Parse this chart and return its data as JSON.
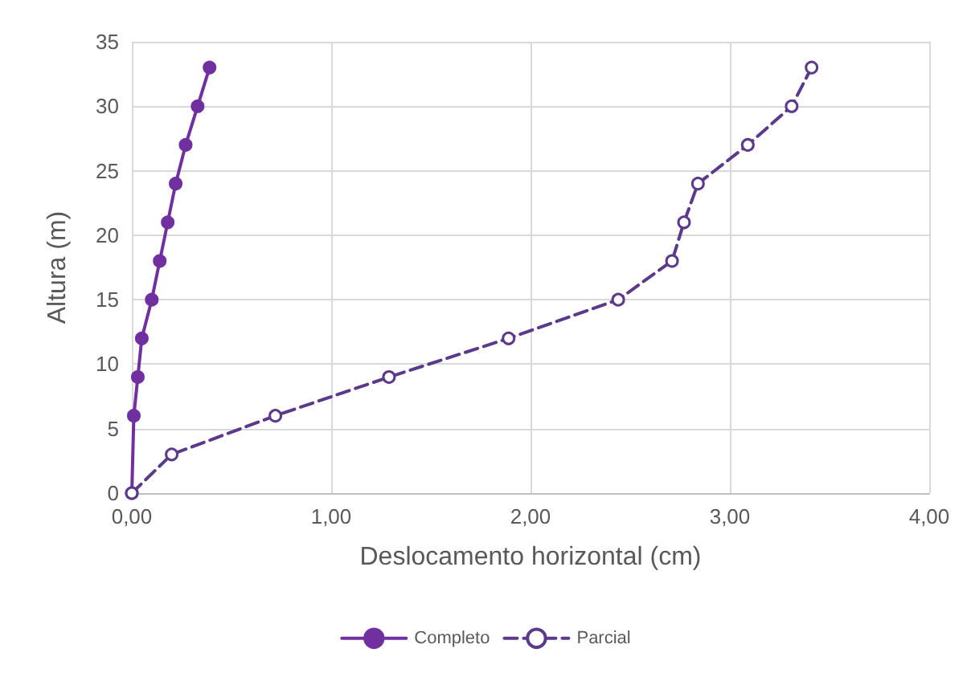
{
  "chart_data": {
    "type": "line",
    "xlabel": "Deslocamento horizontal (cm)",
    "ylabel": "Altura (m)",
    "xlim": [
      0,
      4
    ],
    "xticks": [
      {
        "value": 0,
        "label": "0,00"
      },
      {
        "value": 1,
        "label": "1,00"
      },
      {
        "value": 2,
        "label": "2,00"
      },
      {
        "value": 3,
        "label": "3,00"
      },
      {
        "value": 4,
        "label": "4,00"
      }
    ],
    "ylim": [
      0,
      35
    ],
    "yticks": [
      0,
      5,
      10,
      15,
      20,
      25,
      30,
      35
    ],
    "grid": true,
    "legend": "bottom",
    "series": [
      {
        "name": "Completo",
        "color": "#7030a0",
        "marker": "circle",
        "line_style": "solid",
        "x": [
          0,
          0.01,
          0.03,
          0.05,
          0.1,
          0.14,
          0.18,
          0.22,
          0.27,
          0.33,
          0.39
        ],
        "values": [
          0,
          6,
          9,
          12,
          15,
          18,
          21,
          24,
          27,
          30,
          33
        ]
      },
      {
        "name": "Parcial",
        "color": "#5b3a8c",
        "marker": "circle",
        "line_style": "dashed",
        "x": [
          0,
          0.2,
          0.72,
          1.29,
          1.89,
          2.44,
          2.71,
          2.77,
          2.84,
          3.09,
          3.31,
          3.41
        ],
        "values": [
          0,
          3,
          6,
          9,
          12,
          15,
          18,
          21,
          24,
          27,
          30,
          33
        ]
      }
    ]
  }
}
